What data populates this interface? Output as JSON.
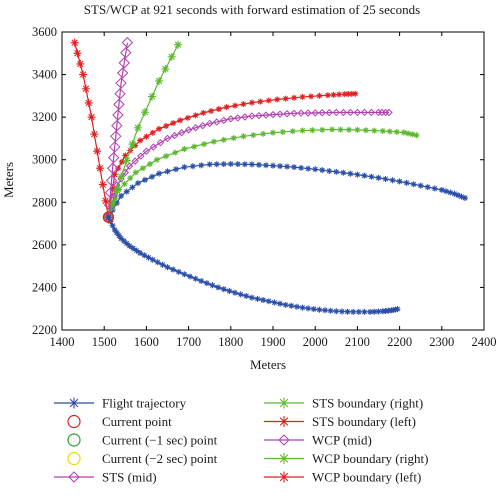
{
  "chart_data": {
    "type": "line",
    "title": "STS/WCP at 921 seconds with forward estimation of 25 seconds",
    "xlabel": "Meters",
    "ylabel": "Meters",
    "xlim": [
      1400,
      2400
    ],
    "ylim": [
      2200,
      3600
    ],
    "xticks": [
      1400,
      1500,
      1600,
      1700,
      1800,
      1900,
      2000,
      2100,
      2200,
      2300,
      2400
    ],
    "yticks": [
      2200,
      2400,
      2600,
      2800,
      3000,
      3200,
      3400,
      3600
    ],
    "grid": false,
    "legend_placement": "below plot, two columns",
    "series": [
      {
        "name": "Flight trajectory",
        "color": "#2b4fa8",
        "marker": "asterisk",
        "marker_size": 3,
        "line": true,
        "x": [
          1510,
          1525,
          1540,
          1560,
          1585,
          1615,
          1650,
          1690,
          1730,
          1770,
          1810,
          1850,
          1890,
          1930,
          1970,
          2010,
          2050,
          2090,
          2130,
          2160,
          2180,
          2195
        ],
        "y": [
          2730,
          2670,
          2630,
          2595,
          2562,
          2530,
          2495,
          2462,
          2430,
          2400,
          2375,
          2352,
          2335,
          2318,
          2305,
          2295,
          2288,
          2285,
          2285,
          2288,
          2292,
          2298
        ]
      },
      {
        "name": "Current point",
        "color": "#e02020",
        "marker": "circle",
        "marker_size": 5,
        "line": false,
        "x": [
          1510
        ],
        "y": [
          2730
        ]
      },
      {
        "name": "Current (−1 sec) point",
        "color": "#2ca02c",
        "marker": "circle",
        "marker_size": 5,
        "line": false,
        "x": [
          1510
        ],
        "y": [
          2730
        ]
      },
      {
        "name": "Current (−2 sec) point",
        "color": "#e6d800",
        "marker": "circle",
        "marker_size": 5,
        "line": false,
        "x": [
          1510
        ],
        "y": [
          2730
        ]
      },
      {
        "name": "STS (mid)",
        "color": "#b040b0",
        "marker": "diamond",
        "marker_size": 3,
        "line": true,
        "x": [
          1510,
          1530,
          1560,
          1600,
          1650,
          1700,
          1750,
          1800,
          1850,
          1900,
          1950,
          2000,
          2050,
          2100,
          2150,
          2175
        ],
        "y": [
          2730,
          2880,
          2970,
          3040,
          3100,
          3140,
          3170,
          3192,
          3205,
          3212,
          3218,
          3220,
          3222,
          3222,
          3222,
          3222
        ]
      },
      {
        "name": "STS boundary (right)",
        "color": "#5cb82e",
        "marker": "asterisk",
        "marker_size": 3,
        "line": true,
        "x": [
          1510,
          1535,
          1575,
          1625,
          1690,
          1760,
          1830,
          1900,
          1970,
          2040,
          2100,
          2160,
          2210,
          2240
        ],
        "y": [
          2730,
          2860,
          2940,
          3000,
          3050,
          3085,
          3110,
          3127,
          3137,
          3142,
          3140,
          3135,
          3128,
          3115
        ]
      },
      {
        "name": "STS boundary (left)",
        "color": "#e02020",
        "marker": "asterisk",
        "marker_size": 3,
        "line": true,
        "x": [
          1510,
          1525,
          1550,
          1585,
          1630,
          1680,
          1735,
          1790,
          1850,
          1910,
          1970,
          2030,
          2070,
          2095
        ],
        "y": [
          2730,
          2930,
          3020,
          3090,
          3145,
          3185,
          3220,
          3247,
          3268,
          3283,
          3295,
          3303,
          3308,
          3310
        ]
      },
      {
        "name": "WCP (mid)",
        "color": "#b040b0",
        "marker": "diamond",
        "marker_size": 5,
        "line": true,
        "x": [
          1510,
          1520,
          1530,
          1540,
          1555
        ],
        "y": [
          2730,
          2960,
          3160,
          3360,
          3550
        ]
      },
      {
        "name": "WCP boundary (right)",
        "color": "#5cb82e",
        "marker": "asterisk",
        "marker_size": 4,
        "line": true,
        "x": [
          1510,
          1540,
          1580,
          1630,
          1675
        ],
        "y": [
          2730,
          2920,
          3150,
          3370,
          3540
        ]
      },
      {
        "name": "WCP boundary (left)",
        "color": "#e02020",
        "marker": "asterisk",
        "marker_size": 4,
        "line": true,
        "x": [
          1510,
          1490,
          1470,
          1450,
          1430
        ],
        "y": [
          2730,
          2960,
          3200,
          3400,
          3550
        ]
      },
      {
        "name": "",
        "color": "#2b4fa8",
        "marker": "asterisk",
        "marker_size": 3,
        "line": true,
        "x": [
          1510,
          1540,
          1580,
          1630,
          1690,
          1750,
          1800,
          1850,
          1900,
          1950,
          2000,
          2050,
          2100,
          2150,
          2200,
          2250,
          2300,
          2330,
          2355
        ],
        "y": [
          2730,
          2830,
          2890,
          2935,
          2965,
          2978,
          2980,
          2978,
          2972,
          2965,
          2955,
          2943,
          2930,
          2915,
          2898,
          2878,
          2858,
          2840,
          2820
        ]
      }
    ]
  }
}
